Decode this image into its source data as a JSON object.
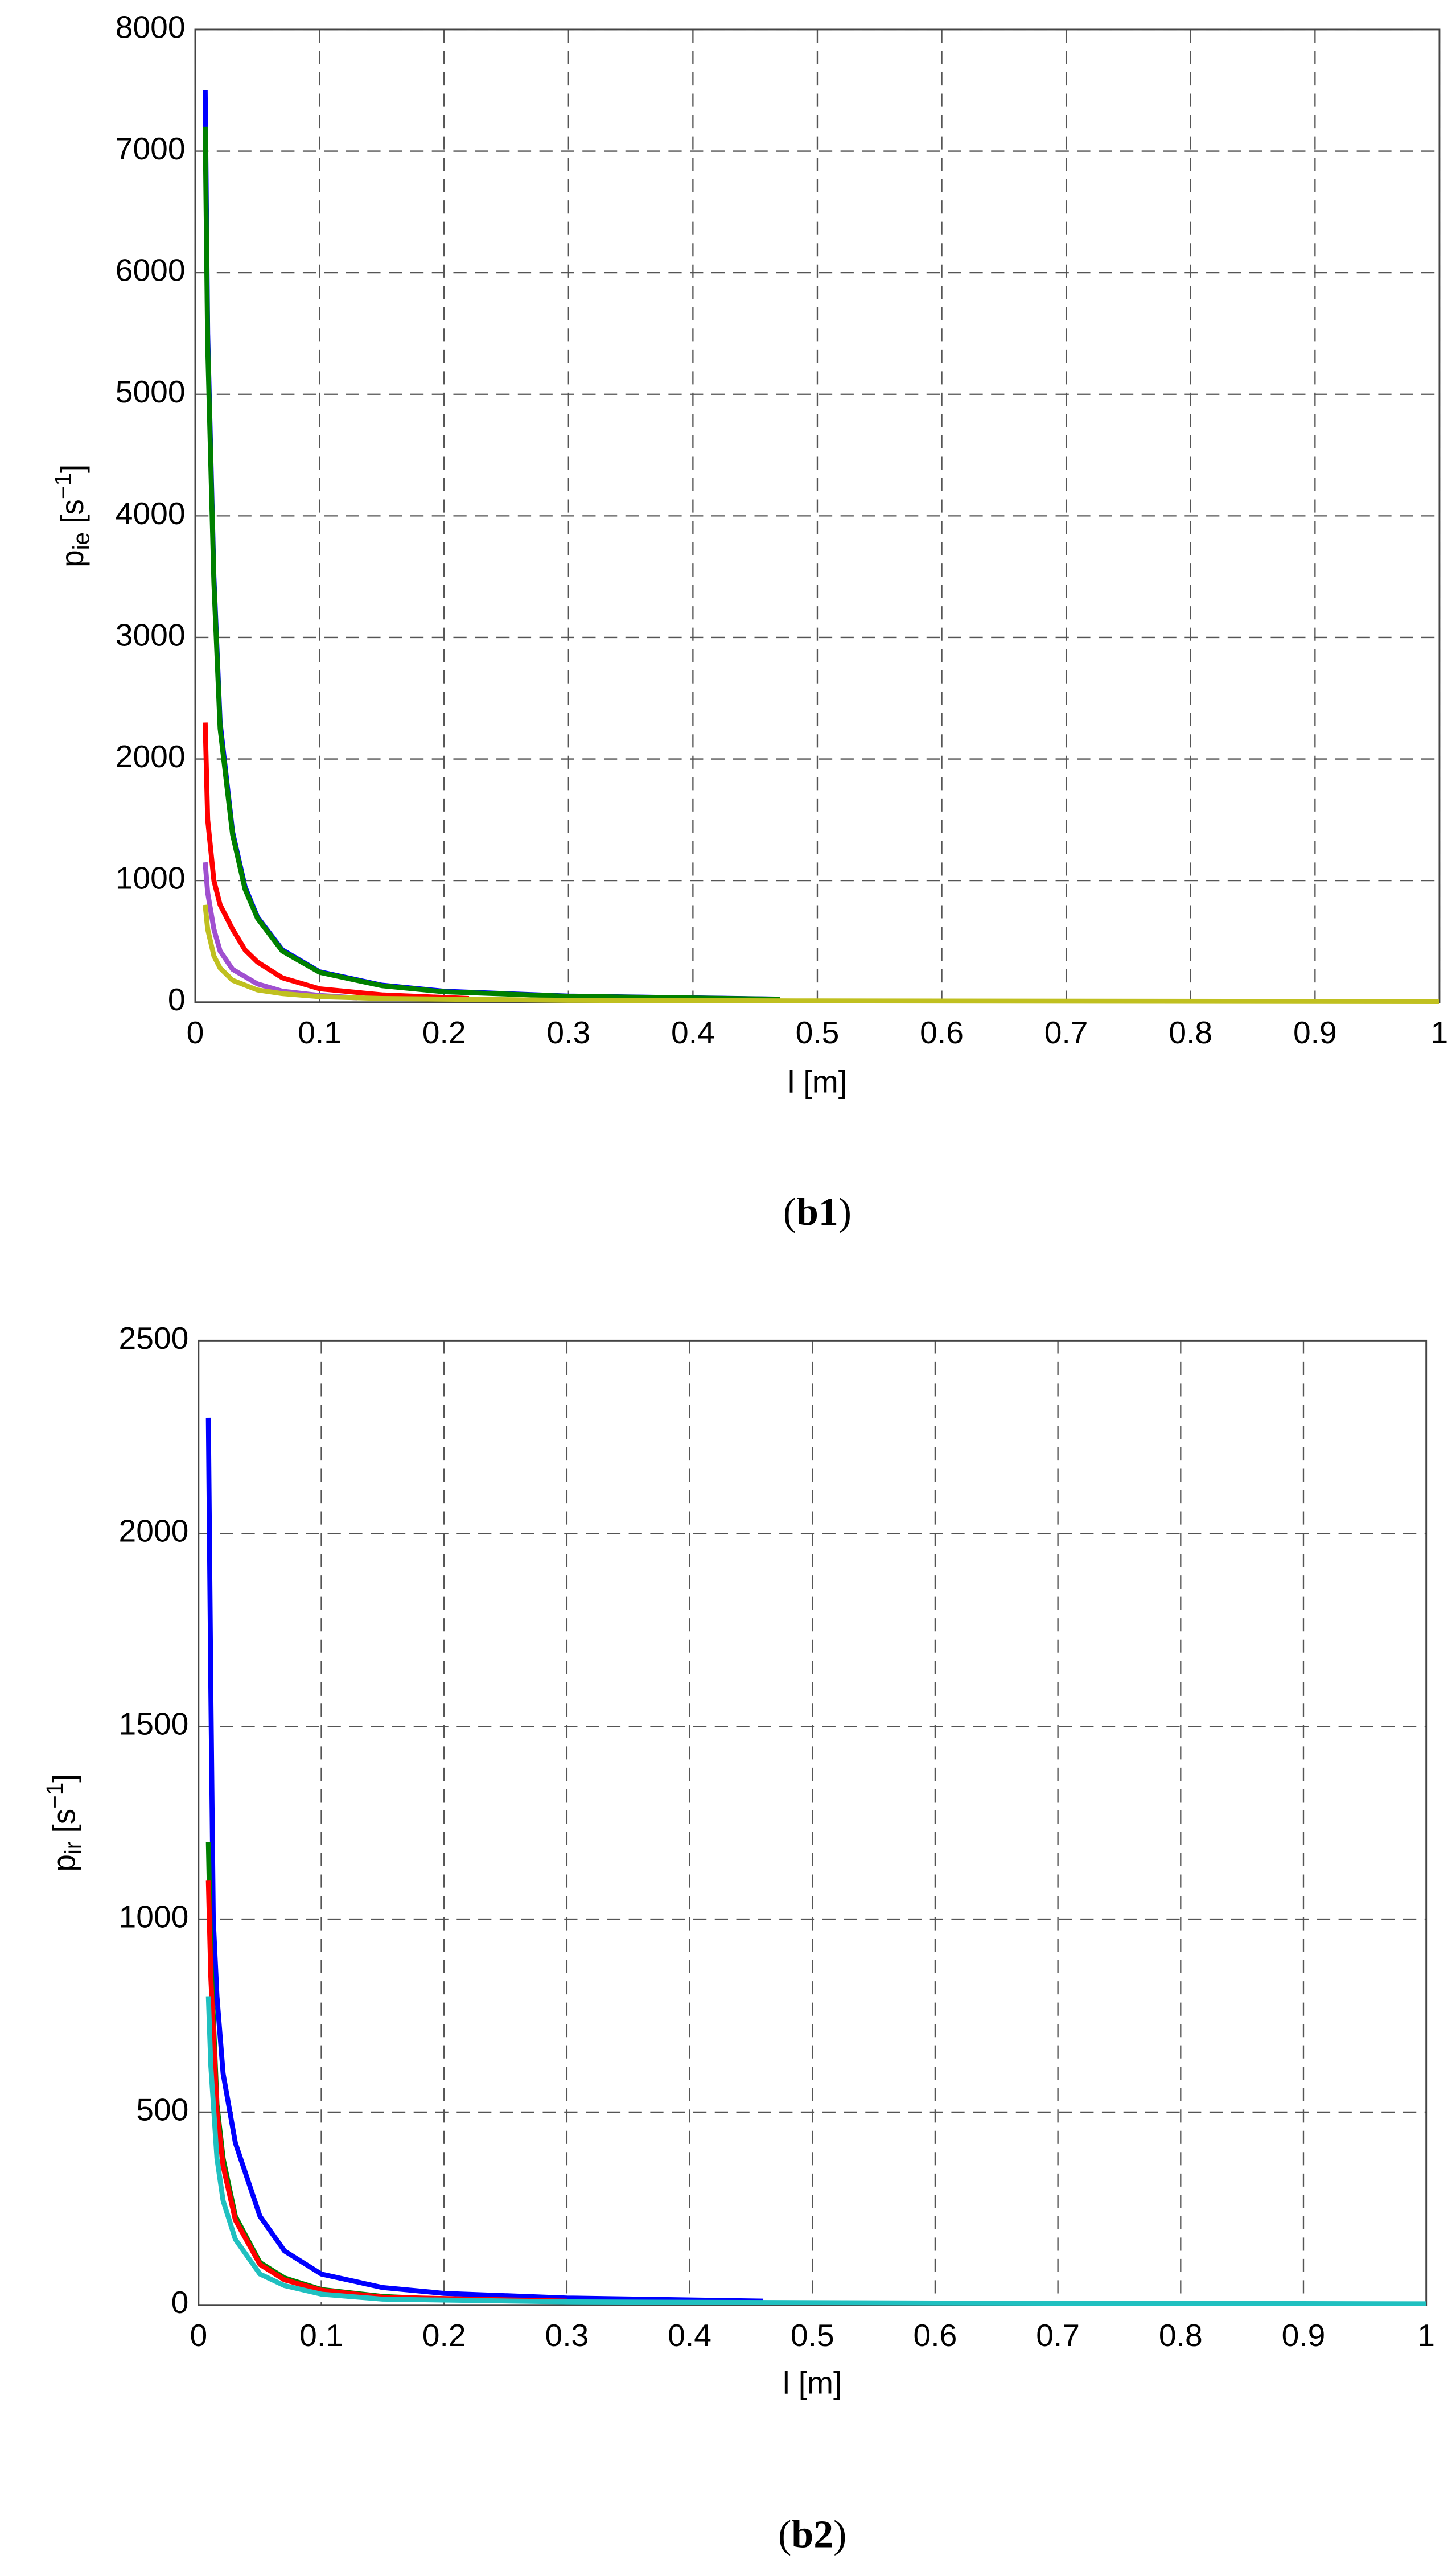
{
  "chart_data": [
    {
      "type": "line",
      "xlabel": "l [m]",
      "ylabel": [
        "p",
        "ie",
        " [s",
        "−1",
        "]"
      ],
      "caption": [
        "(",
        "b1",
        ")"
      ],
      "xlim": [
        0,
        1
      ],
      "ylim": [
        0,
        8000
      ],
      "xticks": [
        0,
        0.1,
        0.2,
        0.3,
        0.4,
        0.5,
        0.6,
        0.7,
        0.8,
        0.9,
        1
      ],
      "yticks": [
        0,
        1000,
        2000,
        3000,
        4000,
        5000,
        6000,
        7000,
        8000
      ],
      "grid": true,
      "series": [
        {
          "color": "#0000ff",
          "x": [
            0.008,
            0.01,
            0.015,
            0.02,
            0.03,
            0.04,
            0.05,
            0.07,
            0.1,
            0.15,
            0.2,
            0.3,
            0.47
          ],
          "values": [
            7500,
            5500,
            3500,
            2300,
            1400,
            950,
            700,
            430,
            250,
            140,
            90,
            50,
            25
          ]
        },
        {
          "color": "#008000",
          "x": [
            0.008,
            0.01,
            0.015,
            0.02,
            0.03,
            0.04,
            0.05,
            0.07,
            0.1,
            0.15,
            0.2,
            0.3,
            0.47
          ],
          "values": [
            7200,
            5400,
            3450,
            2250,
            1380,
            930,
            690,
            420,
            245,
            135,
            85,
            48,
            24
          ]
        },
        {
          "color": "#ff0000",
          "x": [
            0.008,
            0.01,
            0.015,
            0.02,
            0.03,
            0.04,
            0.05,
            0.07,
            0.1,
            0.15,
            0.22
          ],
          "values": [
            2300,
            1500,
            1000,
            800,
            600,
            430,
            330,
            200,
            110,
            60,
            30
          ]
        },
        {
          "color": "#a050d0",
          "x": [
            0.008,
            0.01,
            0.015,
            0.02,
            0.03,
            0.05,
            0.07,
            0.1,
            0.13
          ],
          "values": [
            1150,
            900,
            600,
            420,
            270,
            150,
            90,
            55,
            35
          ]
        },
        {
          "color": "#c0c020",
          "x": [
            0.008,
            0.01,
            0.015,
            0.02,
            0.03,
            0.05,
            0.07,
            0.1,
            0.15,
            0.3,
            0.5,
            1
          ],
          "values": [
            800,
            600,
            380,
            280,
            180,
            100,
            70,
            45,
            30,
            15,
            10,
            5
          ]
        }
      ]
    },
    {
      "type": "line",
      "xlabel": "l [m]",
      "ylabel": [
        "p",
        "ir",
        " [s",
        "−1",
        "]"
      ],
      "caption": [
        "(",
        "b2",
        ")"
      ],
      "xlim": [
        0,
        1
      ],
      "ylim": [
        0,
        2500
      ],
      "xticks": [
        0,
        0.1,
        0.2,
        0.3,
        0.4,
        0.5,
        0.6,
        0.7,
        0.8,
        0.9,
        1
      ],
      "yticks": [
        0,
        500,
        1000,
        1500,
        2000,
        2500
      ],
      "grid": true,
      "series": [
        {
          "color": "#0000ff",
          "x": [
            0.008,
            0.01,
            0.012,
            0.015,
            0.02,
            0.03,
            0.05,
            0.07,
            0.1,
            0.15,
            0.2,
            0.3,
            0.46
          ],
          "values": [
            2300,
            1600,
            1000,
            800,
            600,
            420,
            230,
            140,
            80,
            45,
            30,
            18,
            10
          ]
        },
        {
          "color": "#008000",
          "x": [
            0.008,
            0.01,
            0.015,
            0.02,
            0.03,
            0.05,
            0.07,
            0.1,
            0.15,
            0.2
          ],
          "values": [
            1200,
            900,
            520,
            380,
            230,
            110,
            70,
            40,
            22,
            15
          ]
        },
        {
          "color": "#ff0000",
          "x": [
            0.008,
            0.01,
            0.015,
            0.02,
            0.03,
            0.05,
            0.07,
            0.1,
            0.15,
            0.3
          ],
          "values": [
            1100,
            850,
            500,
            360,
            220,
            105,
            65,
            38,
            20,
            10
          ]
        },
        {
          "color": "#20c0c0",
          "x": [
            0.008,
            0.01,
            0.015,
            0.02,
            0.03,
            0.05,
            0.07,
            0.1,
            0.15,
            0.3,
            0.6,
            1
          ],
          "values": [
            800,
            620,
            380,
            270,
            170,
            80,
            50,
            28,
            15,
            8,
            5,
            3
          ]
        }
      ]
    }
  ]
}
